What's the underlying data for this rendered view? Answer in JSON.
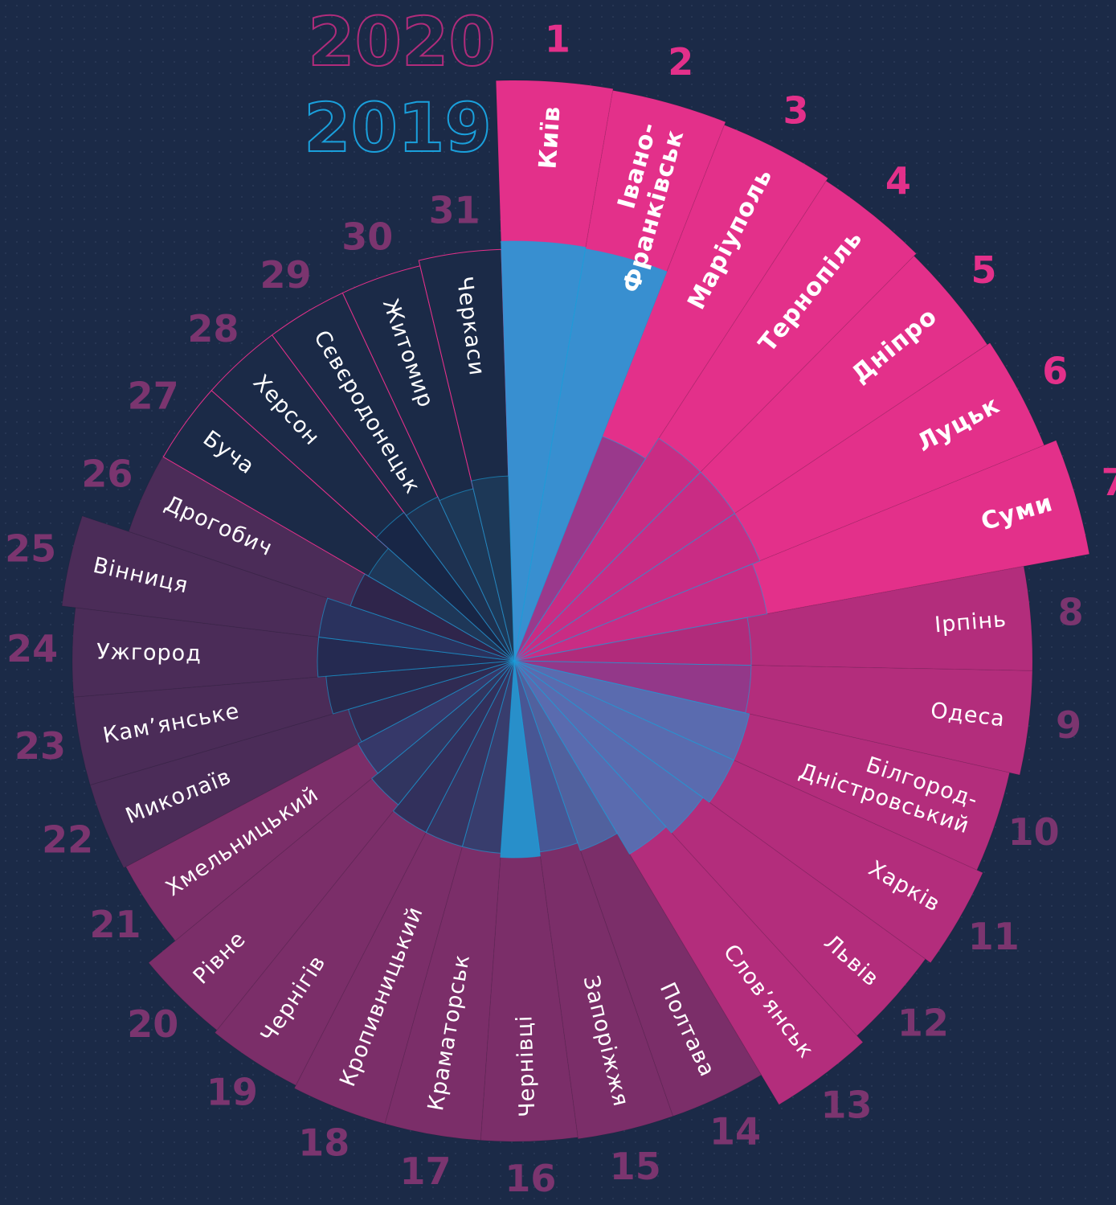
{
  "chart_data": {
    "type": "radial_bar",
    "categories": [
      "Київ",
      "Івано-\nФранківськ",
      "Маріуполь",
      "Тернопіль",
      "Дніпро",
      "Луцьк",
      "Суми",
      "Ірпінь",
      "Одеса",
      "Білгород-\nДністровський",
      "Харків",
      "Львів",
      "Слов’янськ",
      "Полтава",
      "Запоріжжя",
      "Чернівці",
      "Краматорськ",
      "Кропивницький",
      "Чернігів",
      "Рівне",
      "Хмельницький",
      "Миколаїв",
      "Кам’янське",
      "Ужгород",
      "Вінниця",
      "Дрогобич",
      "Буча",
      "Херсон",
      "Сєвєродонецьк",
      "Житомир",
      "Черкаси"
    ],
    "ranks": [
      1,
      2,
      3,
      4,
      5,
      6,
      7,
      8,
      9,
      10,
      11,
      12,
      13,
      14,
      15,
      16,
      17,
      18,
      19,
      20,
      21,
      22,
      23,
      24,
      25,
      26,
      27,
      28,
      29,
      30,
      31
    ],
    "ylim": [
      0,
      730
    ],
    "series": [
      {
        "name": "2020",
        "color": "#e3308a",
        "colors": [
          "#e3308a",
          "#e3308a",
          "#e3308a",
          "#e3308a",
          "#e3308a",
          "#e3308a",
          "#e3308a",
          "#b32d7c",
          "#b32d7c",
          "#b32d7c",
          "#b32d7c",
          "#b32d7c",
          "#b32d7c",
          "#7b2e69",
          "#7b2e69",
          "#7b2e69",
          "#7b2e69",
          "#7b2e69",
          "#7b2e69",
          "#7b2e69",
          "#7b2e69",
          "#4b2c58",
          "#4b2c58",
          "#4b2c58",
          "#4b2c58",
          "#4b2c58",
          "#1b2a47",
          "#1b2a47",
          "#1b2a47",
          "#1b2a47",
          "#1b2a47"
        ],
        "values": [
          722,
          720,
          716,
          712,
          708,
          712,
          728,
          645,
          645,
          632,
          640,
          632,
          643,
          600,
          600,
          598,
          598,
          598,
          594,
          590,
          547,
          550,
          550,
          550,
          567,
          506,
          505,
          505,
          505,
          505,
          512
        ]
      },
      {
        "name": "2019",
        "color": "#1aa0dc",
        "colors": [
          "#1aa0dc",
          "#1aa0dc",
          "#8d3b8c",
          "#c42c83",
          "#c42c83",
          "#c42c83",
          "#c42c83",
          "#b02c7b",
          "#8d3b8c",
          "#4a77b8",
          "#4a77b8",
          "#4a77b8",
          "#4a77b8",
          "#4a6aa8",
          "#3f5d9c",
          "#1aa0dc",
          "#2d3f6e",
          "#2a3560",
          "#26305a",
          "#24365f",
          "#2a3a6a",
          "#2b2b52",
          "#22294c",
          "#1f2a50",
          "#25345f",
          "#2a2449",
          "#1e3a5c",
          "#172646",
          "#1e3352",
          "#1d3b5a",
          "#1d3b5a"
        ],
        "values": [
          522,
          520,
          300,
          330,
          330,
          330,
          320,
          295,
          295,
          300,
          300,
          290,
          280,
          250,
          240,
          245,
          240,
          240,
          240,
          230,
          220,
          215,
          235,
          245,
          245,
          215,
          210,
          230,
          225,
          220,
          230
        ]
      }
    ]
  }
}
